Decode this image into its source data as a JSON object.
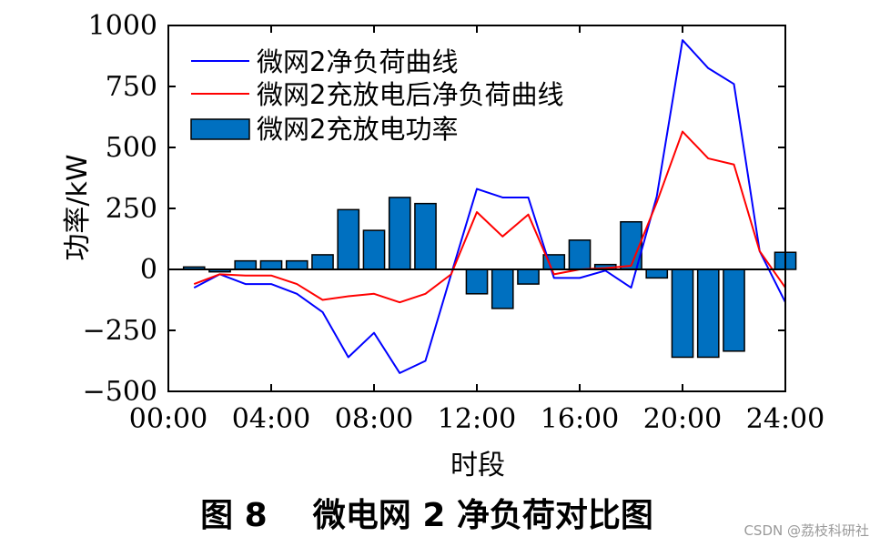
{
  "chart_data": {
    "type": "bar",
    "xlabel": "时段",
    "ylabel": "功率/kW",
    "xlim": [
      0,
      24
    ],
    "ylim": [
      -500,
      1000
    ],
    "x_ticks": [
      0,
      4,
      8,
      12,
      16,
      20,
      24
    ],
    "x_tick_labels": [
      "00:00",
      "04:00",
      "08:00",
      "12:00",
      "16:00",
      "20:00",
      "24:00"
    ],
    "y_ticks": [
      -500,
      -250,
      0,
      250,
      500,
      750,
      1000
    ],
    "y_tick_labels": [
      "−500",
      "−250",
      "0",
      "250",
      "500",
      "750",
      "1000"
    ],
    "legend_position": "top-left",
    "grid": false,
    "x": [
      1,
      2,
      3,
      4,
      5,
      6,
      7,
      8,
      9,
      10,
      11,
      12,
      13,
      14,
      15,
      16,
      17,
      18,
      19,
      20,
      21,
      22,
      23,
      24
    ],
    "series": [
      {
        "name": "微网2净负荷曲线",
        "kind": "line",
        "color": "#0000ff",
        "values": [
          -75,
          -20,
          -60,
          -60,
          -100,
          -175,
          -360,
          -260,
          -425,
          -375,
          -20,
          330,
          295,
          295,
          -35,
          -35,
          -5,
          -75,
          300,
          940,
          825,
          760,
          75,
          -135
        ]
      },
      {
        "name": "微网2充放电后净负荷曲线",
        "kind": "line",
        "color": "#ff0000",
        "values": [
          -60,
          -20,
          -25,
          -25,
          -60,
          -125,
          -110,
          -100,
          -135,
          -100,
          -20,
          235,
          135,
          225,
          -20,
          0,
          5,
          15,
          275,
          565,
          455,
          430,
          75,
          -75
        ]
      },
      {
        "name": "微网2充放电功率",
        "kind": "bar",
        "color": "#0070c0",
        "values": [
          10,
          -10,
          35,
          35,
          35,
          60,
          245,
          160,
          295,
          270,
          0,
          -100,
          -160,
          -60,
          60,
          120,
          20,
          195,
          -35,
          -360,
          -360,
          -335,
          0,
          70
        ]
      }
    ]
  },
  "caption": "图 8    微电网 2 净负荷对比图",
  "watermark": "CSDN @荔枝科研社"
}
